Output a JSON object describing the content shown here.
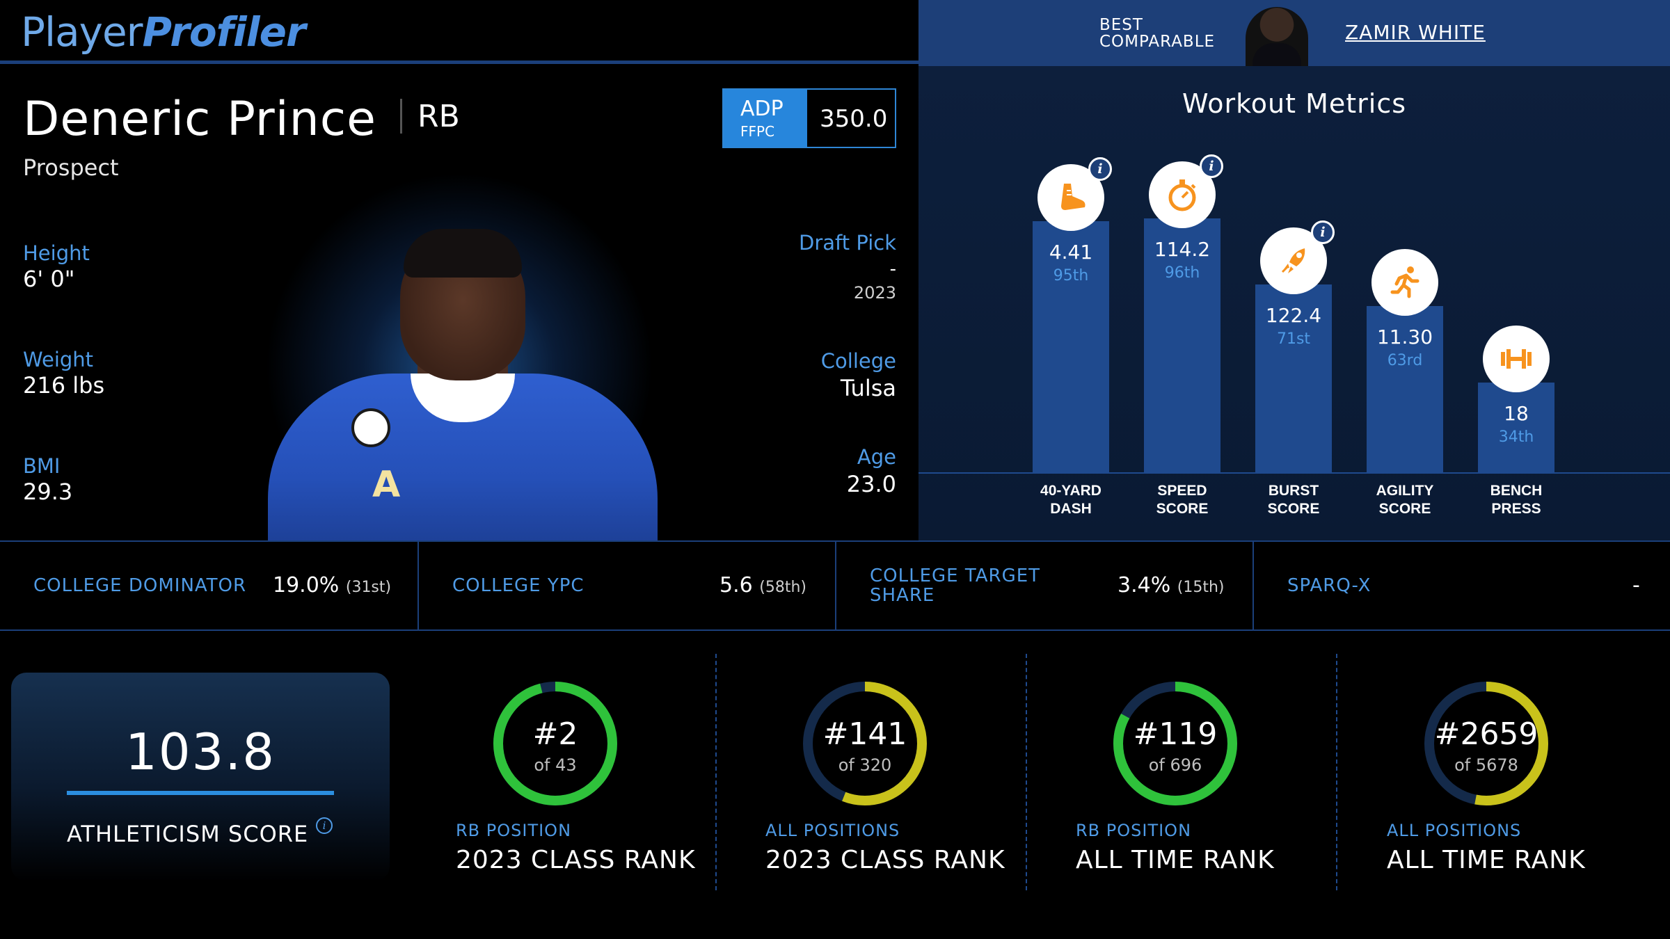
{
  "header": {
    "logo_part1": "Player",
    "logo_part2": "Profiler",
    "comparable_label_1": "BEST",
    "comparable_label_2": "COMPARABLE",
    "comparable_name": "ZAMIR WHITE"
  },
  "player": {
    "name": "Deneric Prince",
    "position": "RB",
    "status": "Prospect",
    "adp_label": "ADP",
    "adp_source": "FFPC",
    "adp_value": "350.0",
    "jersey_letter": "A",
    "height_label": "Height",
    "height": "6' 0\"",
    "weight_label": "Weight",
    "weight": "216 lbs",
    "bmi_label": "BMI",
    "bmi": "29.3",
    "draft_pick_label": "Draft Pick",
    "draft_pick": "-",
    "draft_year": "2023",
    "college_label": "College",
    "college": "Tulsa",
    "age_label": "Age",
    "age": "23.0"
  },
  "workout": {
    "title": "Workout Metrics",
    "accent_color": "#f7931e",
    "metrics": [
      {
        "label_1": "40-YARD",
        "label_2": "DASH",
        "value": "4.41",
        "percentile": "95th",
        "percentile_num": 95,
        "icon": "shoe-icon",
        "info": true
      },
      {
        "label_1": "SPEED",
        "label_2": "SCORE",
        "value": "114.2",
        "percentile": "96th",
        "percentile_num": 96,
        "icon": "stopwatch-icon",
        "info": true
      },
      {
        "label_1": "BURST",
        "label_2": "SCORE",
        "value": "122.4",
        "percentile": "71st",
        "percentile_num": 71,
        "icon": "rocket-icon",
        "info": true
      },
      {
        "label_1": "AGILITY",
        "label_2": "SCORE",
        "value": "11.30",
        "percentile": "63rd",
        "percentile_num": 63,
        "icon": "runner-icon",
        "info": false
      },
      {
        "label_1": "BENCH",
        "label_2": "PRESS",
        "value": "18",
        "percentile": "34th",
        "percentile_num": 34,
        "icon": "dumbbell-icon",
        "info": false
      }
    ]
  },
  "college_stats": [
    {
      "label_1": "COLLEGE DOMINATOR",
      "label_2": "",
      "value": "19.0%",
      "rank": "(31st)"
    },
    {
      "label_1": "COLLEGE YPC",
      "label_2": "",
      "value": "5.6",
      "rank": "(58th)"
    },
    {
      "label_1": "COLLEGE TARGET",
      "label_2": "SHARE",
      "value": "3.4%",
      "rank": "(15th)"
    },
    {
      "label_1": "SPARQ-X",
      "label_2": "",
      "value": "-",
      "rank": ""
    }
  ],
  "athleticism": {
    "score": "103.8",
    "label": "ATHLETICISM SCORE"
  },
  "ranks": [
    {
      "rank": "#2",
      "of": "of 43",
      "sub": "RB POSITION",
      "title": "2023 CLASS RANK",
      "fraction": 0.96,
      "color": "#2fc23b"
    },
    {
      "rank": "#141",
      "of": "of 320",
      "sub": "ALL POSITIONS",
      "title": "2023 CLASS RANK",
      "fraction": 0.56,
      "color": "#c9c21b"
    },
    {
      "rank": "#119",
      "of": "of 696",
      "sub": "RB POSITION",
      "title": "ALL TIME RANK",
      "fraction": 0.83,
      "color": "#2fc23b"
    },
    {
      "rank": "#2659",
      "of": "of 5678",
      "sub": "ALL POSITIONS",
      "title": "ALL TIME RANK",
      "fraction": 0.53,
      "color": "#c9c21b"
    }
  ]
}
